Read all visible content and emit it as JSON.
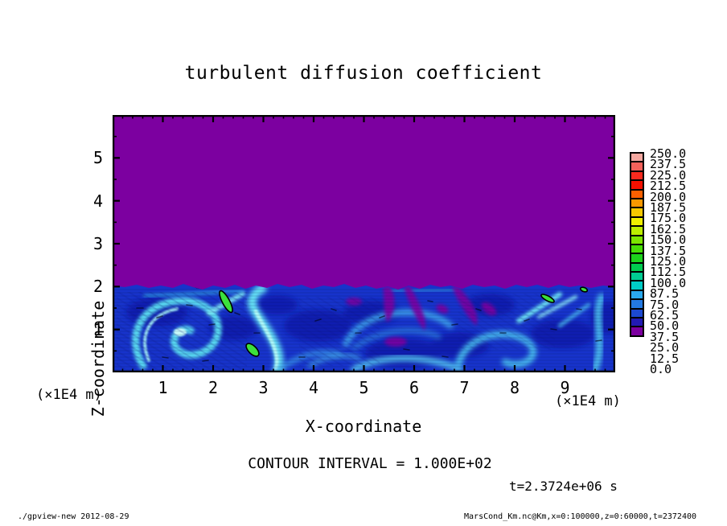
{
  "title": "turbulent diffusion coefficient",
  "plot": {
    "x_axis": {
      "label": "X-coordinate",
      "unit": "(×1E4 m)",
      "min": 0,
      "max": 10,
      "major_ticks": [
        1,
        2,
        3,
        4,
        5,
        6,
        7,
        8,
        9
      ],
      "minor_step": 0.2
    },
    "z_axis": {
      "label": "Z-coordinate",
      "unit": "(×1E4 m)",
      "min": 0,
      "max": 6,
      "major_ticks": [
        1,
        2,
        3,
        4,
        5
      ],
      "minor_step": 0.5
    }
  },
  "colorbar": {
    "values": [
      "250.0",
      "237.5",
      "225.0",
      "212.5",
      "200.0",
      "187.5",
      "175.0",
      "162.5",
      "150.0",
      "137.5",
      "125.0",
      "112.5",
      "100.0",
      "87.5",
      "75.0",
      "62.5",
      "50.0",
      "37.5",
      "25.0",
      "12.5",
      "0.0"
    ],
    "colors": [
      "#F5A8A0",
      "#F4615A",
      "#F92A1E",
      "#F51000",
      "#FA6000",
      "#F99800",
      "#F5C800",
      "#EFEF00",
      "#BCEE00",
      "#7CE600",
      "#46DE06",
      "#1CD31C",
      "#00CC50",
      "#00CC92",
      "#00CCC6",
      "#2AA9EE",
      "#2379E3",
      "#1C49D2",
      "#221AB4",
      "#7C00A0"
    ]
  },
  "annotations": {
    "contour_interval": "CONTOUR INTERVAL = 1.000E+02",
    "time": "t=2.3724e+06 s"
  },
  "footer": {
    "left": "./gpview-new  2012-08-29",
    "right": "MarsCond_Km.nc@Km,x=0:100000,z=0:60000,t=2372400"
  },
  "colors": {
    "field_zero_purple": "#7C00A0",
    "field_base_blue": "#1733CB",
    "contour_green": "#3CE03C",
    "axis_black": "#000000"
  },
  "chart_data": {
    "type": "heatmap",
    "title": "turbulent diffusion coefficient",
    "xlabel": "X-coordinate",
    "ylabel": "Z-coordinate",
    "x_unit": "×1E4 m",
    "z_unit": "×1E4 m",
    "xlim": [
      0,
      10
    ],
    "ylim": [
      0,
      6
    ],
    "x_ticks": [
      1,
      2,
      3,
      4,
      5,
      6,
      7,
      8,
      9
    ],
    "z_ticks": [
      1,
      2,
      3,
      4,
      5
    ],
    "x_range_m": [
      0,
      100000
    ],
    "z_range_m": [
      0,
      60000
    ],
    "time_s": 2372400,
    "contour_interval": 100.0,
    "levels": [
      0,
      12.5,
      25,
      37.5,
      50,
      62.5,
      75,
      87.5,
      100,
      112.5,
      125,
      137.5,
      150,
      162.5,
      175,
      187.5,
      200,
      212.5,
      225,
      237.5,
      250
    ],
    "colorbar_range": [
      0,
      250
    ],
    "legend_position": "right",
    "field_summary": {
      "upper_region": "z &gt; ~2 (×1E4 m): uniform value 0 (purple)",
      "lower_region": "z &lt; ~2 (×1E4 m): turbulent convective boundary layer, values mostly 12.5–87.5 (dark blue to cyan) with vortices near x≈1.4, x≈5.5, x≈7.5 and rising plumes near x≈3 and x≈9.5",
      "interface_height": 2.0,
      "local_maxima_above_100": [
        {
          "x": 2.3,
          "z": 1.65
        },
        {
          "x": 2.85,
          "z": 0.55
        },
        {
          "x": 8.6,
          "z": 1.6
        },
        {
          "x": 9.4,
          "z": 1.75
        }
      ]
    }
  }
}
